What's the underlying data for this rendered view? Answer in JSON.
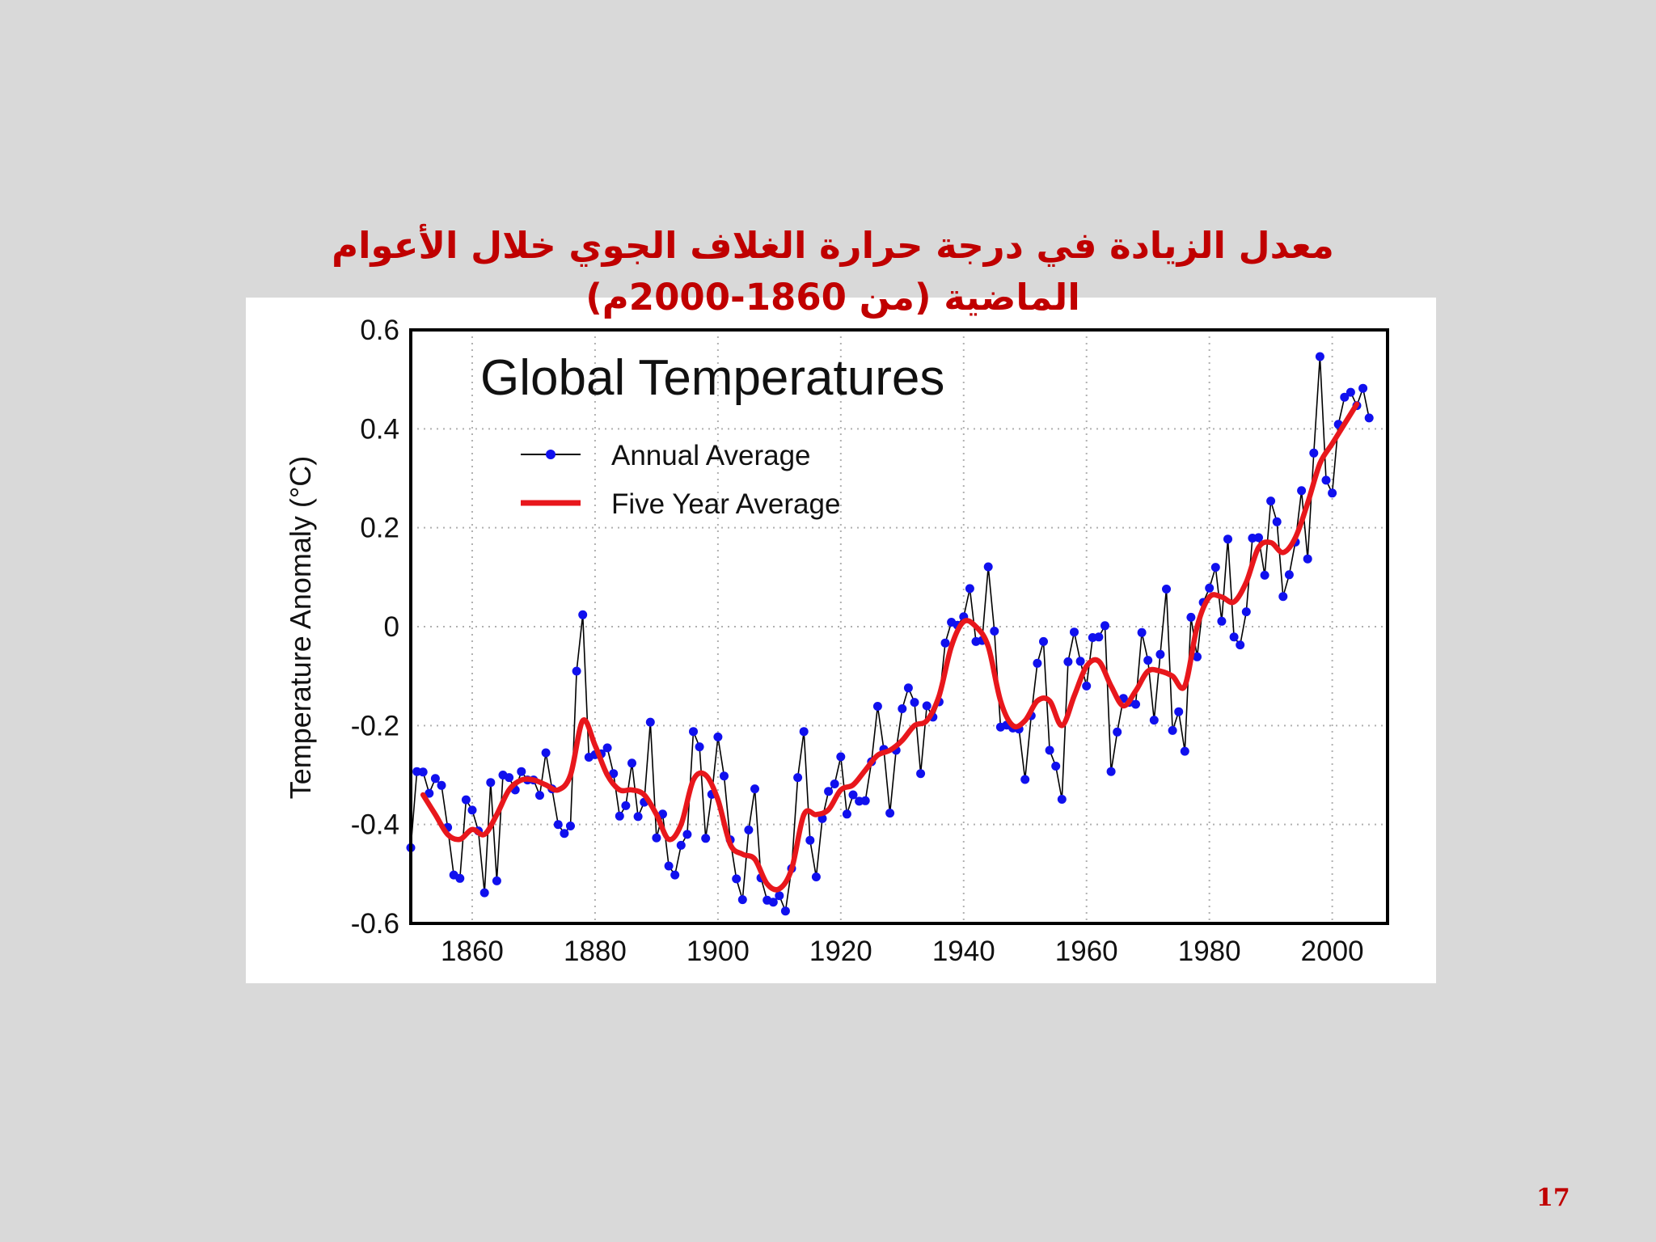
{
  "slide": {
    "title_line1": "معدل الزيادة في درجة حرارة الغلاف الجوي خلال الأعوام",
    "title_line2": "الماضية (من 1860-2000م)",
    "page_number": "17"
  },
  "chart_data": {
    "type": "line",
    "title": "Global Temperatures",
    "xlabel": "",
    "ylabel": "Temperature Anomaly (°C)",
    "xlim": [
      1850,
      2009
    ],
    "ylim": [
      -0.6,
      0.6
    ],
    "x_ticks": [
      1860,
      1880,
      1900,
      1920,
      1940,
      1960,
      1980,
      2000
    ],
    "y_ticks": [
      -0.6,
      -0.4,
      -0.2,
      0,
      0.2,
      0.4,
      0.6
    ],
    "y_tick_labels": [
      "-0.6",
      "-0.4",
      "-0.2",
      "0",
      "0.2",
      "0.4",
      "0.6"
    ],
    "grid": true,
    "legend_position": "top-left",
    "colors": {
      "annual_line": "#000000",
      "annual_marker": "#1010ee",
      "five_year": "#e8171c"
    },
    "series": [
      {
        "name": "Annual Average",
        "style": "line-markers",
        "x": [
          1850,
          1851,
          1852,
          1853,
          1854,
          1855,
          1856,
          1857,
          1858,
          1859,
          1860,
          1861,
          1862,
          1863,
          1864,
          1865,
          1866,
          1867,
          1868,
          1869,
          1870,
          1871,
          1872,
          1873,
          1874,
          1875,
          1876,
          1877,
          1878,
          1879,
          1880,
          1881,
          1882,
          1883,
          1884,
          1885,
          1886,
          1887,
          1888,
          1889,
          1890,
          1891,
          1892,
          1893,
          1894,
          1895,
          1896,
          1897,
          1898,
          1899,
          1900,
          1901,
          1902,
          1903,
          1904,
          1905,
          1906,
          1907,
          1908,
          1909,
          1910,
          1911,
          1912,
          1913,
          1914,
          1915,
          1916,
          1917,
          1918,
          1919,
          1920,
          1921,
          1922,
          1923,
          1924,
          1925,
          1926,
          1927,
          1928,
          1929,
          1930,
          1931,
          1932,
          1933,
          1934,
          1935,
          1936,
          1937,
          1938,
          1939,
          1940,
          1941,
          1942,
          1943,
          1944,
          1945,
          1946,
          1947,
          1948,
          1949,
          1950,
          1951,
          1952,
          1953,
          1954,
          1955,
          1956,
          1957,
          1958,
          1959,
          1960,
          1961,
          1962,
          1963,
          1964,
          1965,
          1966,
          1967,
          1968,
          1969,
          1970,
          1971,
          1972,
          1973,
          1974,
          1975,
          1976,
          1977,
          1978,
          1979,
          1980,
          1981,
          1982,
          1983,
          1984,
          1985,
          1986,
          1987,
          1988,
          1989,
          1990,
          1991,
          1992,
          1993,
          1994,
          1995,
          1996,
          1997,
          1998,
          1999,
          2000,
          2001,
          2002,
          2003,
          2004,
          2005,
          2006
        ],
        "values": [
          -0.447,
          -0.293,
          -0.294,
          -0.337,
          -0.307,
          -0.321,
          -0.406,
          -0.502,
          -0.509,
          -0.35,
          -0.371,
          -0.413,
          -0.538,
          -0.315,
          -0.514,
          -0.3,
          -0.305,
          -0.33,
          -0.293,
          -0.31,
          -0.31,
          -0.341,
          -0.255,
          -0.328,
          -0.4,
          -0.418,
          -0.403,
          -0.09,
          0.024,
          -0.264,
          -0.259,
          -0.257,
          -0.245,
          -0.297,
          -0.383,
          -0.362,
          -0.276,
          -0.384,
          -0.355,
          -0.193,
          -0.427,
          -0.379,
          -0.484,
          -0.502,
          -0.442,
          -0.42,
          -0.212,
          -0.243,
          -0.428,
          -0.339,
          -0.223,
          -0.302,
          -0.431,
          -0.51,
          -0.552,
          -0.411,
          -0.328,
          -0.508,
          -0.553,
          -0.557,
          -0.544,
          -0.575,
          -0.489,
          -0.305,
          -0.212,
          -0.432,
          -0.506,
          -0.388,
          -0.333,
          -0.318,
          -0.263,
          -0.379,
          -0.34,
          -0.353,
          -0.352,
          -0.273,
          -0.161,
          -0.248,
          -0.377,
          -0.25,
          -0.166,
          -0.124,
          -0.153,
          -0.297,
          -0.16,
          -0.183,
          -0.152,
          -0.033,
          0.009,
          0.003,
          0.02,
          0.077,
          -0.03,
          -0.028,
          0.121,
          -0.009,
          -0.203,
          -0.199,
          -0.205,
          -0.207,
          -0.309,
          -0.18,
          -0.074,
          -0.03,
          -0.25,
          -0.282,
          -0.349,
          -0.071,
          -0.011,
          -0.07,
          -0.12,
          -0.022,
          -0.021,
          0.002,
          -0.293,
          -0.213,
          -0.145,
          -0.153,
          -0.157,
          -0.012,
          -0.068,
          -0.189,
          -0.056,
          0.076,
          -0.21,
          -0.172,
          -0.252,
          0.019,
          -0.061,
          0.049,
          0.078,
          0.12,
          0.011,
          0.177,
          -0.021,
          -0.037,
          0.03,
          0.179,
          0.18,
          0.104,
          0.254,
          0.212,
          0.061,
          0.105,
          0.171,
          0.275,
          0.137,
          0.351,
          0.546,
          0.296,
          0.27,
          0.409,
          0.464,
          0.474,
          0.447,
          0.482,
          0.422
        ]
      },
      {
        "name": "Five Year Average",
        "style": "smooth-line",
        "x": [
          1852,
          1854,
          1856,
          1858,
          1860,
          1862,
          1864,
          1866,
          1868,
          1870,
          1872,
          1874,
          1876,
          1878,
          1880,
          1882,
          1884,
          1886,
          1888,
          1890,
          1892,
          1894,
          1896,
          1898,
          1900,
          1902,
          1904,
          1906,
          1908,
          1910,
          1912,
          1914,
          1916,
          1918,
          1920,
          1922,
          1924,
          1926,
          1928,
          1930,
          1932,
          1934,
          1936,
          1938,
          1940,
          1942,
          1944,
          1946,
          1948,
          1950,
          1952,
          1954,
          1956,
          1958,
          1960,
          1962,
          1964,
          1966,
          1968,
          1970,
          1972,
          1974,
          1976,
          1978,
          1980,
          1982,
          1984,
          1986,
          1988,
          1990,
          1992,
          1994,
          1996,
          1998,
          2000,
          2002,
          2004
        ],
        "values": [
          -0.34,
          -0.38,
          -0.42,
          -0.43,
          -0.41,
          -0.42,
          -0.38,
          -0.33,
          -0.31,
          -0.31,
          -0.32,
          -0.33,
          -0.3,
          -0.19,
          -0.24,
          -0.3,
          -0.33,
          -0.33,
          -0.34,
          -0.38,
          -0.43,
          -0.4,
          -0.31,
          -0.3,
          -0.35,
          -0.44,
          -0.46,
          -0.47,
          -0.52,
          -0.53,
          -0.49,
          -0.38,
          -0.38,
          -0.37,
          -0.33,
          -0.32,
          -0.29,
          -0.26,
          -0.25,
          -0.23,
          -0.2,
          -0.19,
          -0.14,
          -0.04,
          0.01,
          0.0,
          -0.04,
          -0.15,
          -0.2,
          -0.19,
          -0.15,
          -0.15,
          -0.2,
          -0.14,
          -0.08,
          -0.07,
          -0.12,
          -0.16,
          -0.13,
          -0.09,
          -0.09,
          -0.1,
          -0.12,
          0.0,
          0.06,
          0.06,
          0.05,
          0.09,
          0.16,
          0.17,
          0.15,
          0.18,
          0.25,
          0.33,
          0.37,
          0.41,
          0.45
        ]
      }
    ]
  }
}
